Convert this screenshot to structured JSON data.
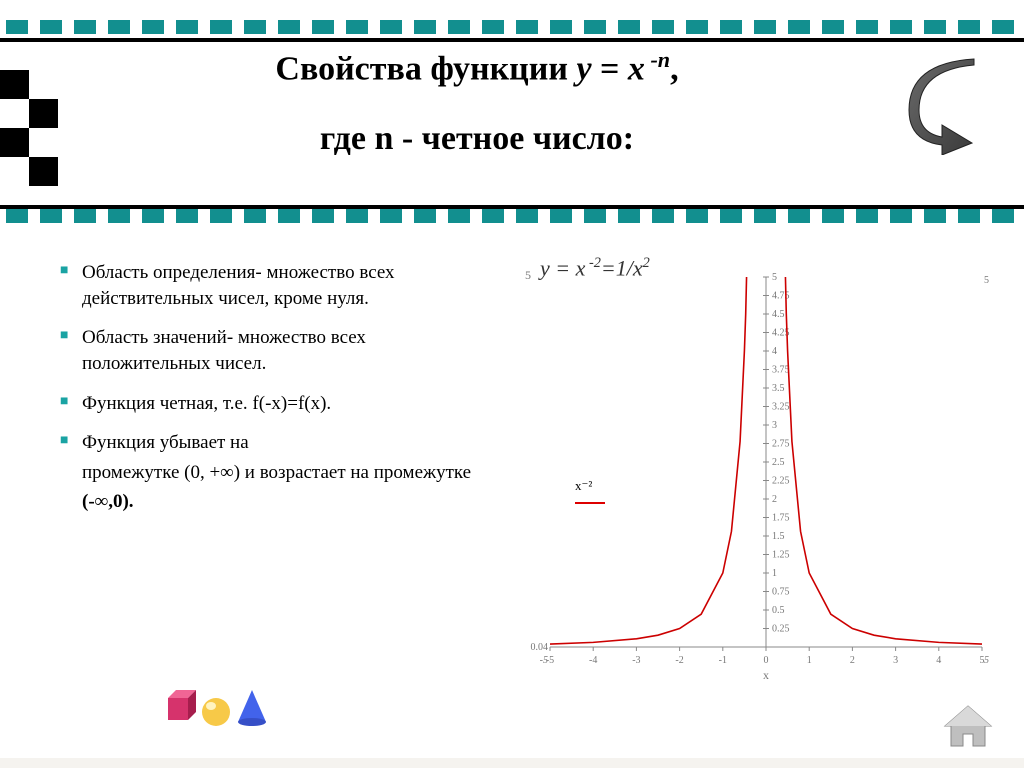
{
  "title": {
    "line1_prefix": "Свойства функции ",
    "line1_formula_y": "y",
    "line1_formula_eq": " = ",
    "line1_formula_x": "x",
    "line1_exp": " -n",
    "line1_suffix": ",",
    "line2": "где n - четное число:"
  },
  "bullets": [
    "Область определения- множество всех действительных чисел, кроме нуля.",
    "Область значений- множество всех положительных чисел.",
    "Функция четная, т.е. f(-x)=f(x).",
    "Функция убывает на"
  ],
  "bullet_tail_1": "промежутке (0, +∞) и возрастает на промежутке",
  "bullet_tail_2": "(-∞,0).",
  "formula_label": "y = x ⁻² = 1/x²",
  "formula_parts": {
    "y": "y",
    "eq1": " = ",
    "x": "x",
    "exp": " -2",
    "eq2": "=1/x",
    "sq": "2"
  },
  "legend_label": "x⁻²",
  "chart": {
    "type": "line",
    "title": "",
    "curve_color": "#cc0000",
    "axis_color": "#888888",
    "tick_color": "#777777",
    "background": "#ffffff",
    "font_size_ticks": 10,
    "xlim": [
      -5,
      5
    ],
    "ylim": [
      0.04,
      5
    ],
    "x_ticks": [
      -5,
      -4,
      -3,
      -2,
      -1,
      0,
      1,
      2,
      3,
      4,
      5
    ],
    "y_ticks": [
      0.25,
      0.5,
      0.75,
      1,
      1.25,
      1.5,
      1.75,
      2,
      2.25,
      2.5,
      2.75,
      3,
      3.25,
      3.5,
      3.75,
      4,
      4.25,
      4.5,
      4.75,
      5
    ],
    "x_label": "x",
    "y_bottom_label": "0.04",
    "x_corner_left": "-5",
    "x_corner_right": "5",
    "five_left": "5",
    "curve_points_left": [
      [
        -5,
        0.04
      ],
      [
        -4,
        0.0625
      ],
      [
        -3,
        0.111
      ],
      [
        -2.5,
        0.16
      ],
      [
        -2,
        0.25
      ],
      [
        -1.5,
        0.444
      ],
      [
        -1,
        1
      ],
      [
        -0.8,
        1.5625
      ],
      [
        -0.6,
        2.778
      ],
      [
        -0.5,
        4
      ],
      [
        -0.47,
        4.5
      ],
      [
        -0.45,
        5
      ]
    ],
    "curve_points_right": [
      [
        0.45,
        5
      ],
      [
        0.47,
        4.5
      ],
      [
        0.5,
        4
      ],
      [
        0.6,
        2.778
      ],
      [
        0.8,
        1.5625
      ],
      [
        1,
        1
      ],
      [
        1.5,
        0.444
      ],
      [
        2,
        0.25
      ],
      [
        2.5,
        0.16
      ],
      [
        3,
        0.111
      ],
      [
        4,
        0.0625
      ],
      [
        5,
        0.04
      ]
    ],
    "line_width": 1.6
  },
  "colors": {
    "teal": "#128f8f",
    "bullet": "#1aa3a3",
    "black": "#000000"
  }
}
